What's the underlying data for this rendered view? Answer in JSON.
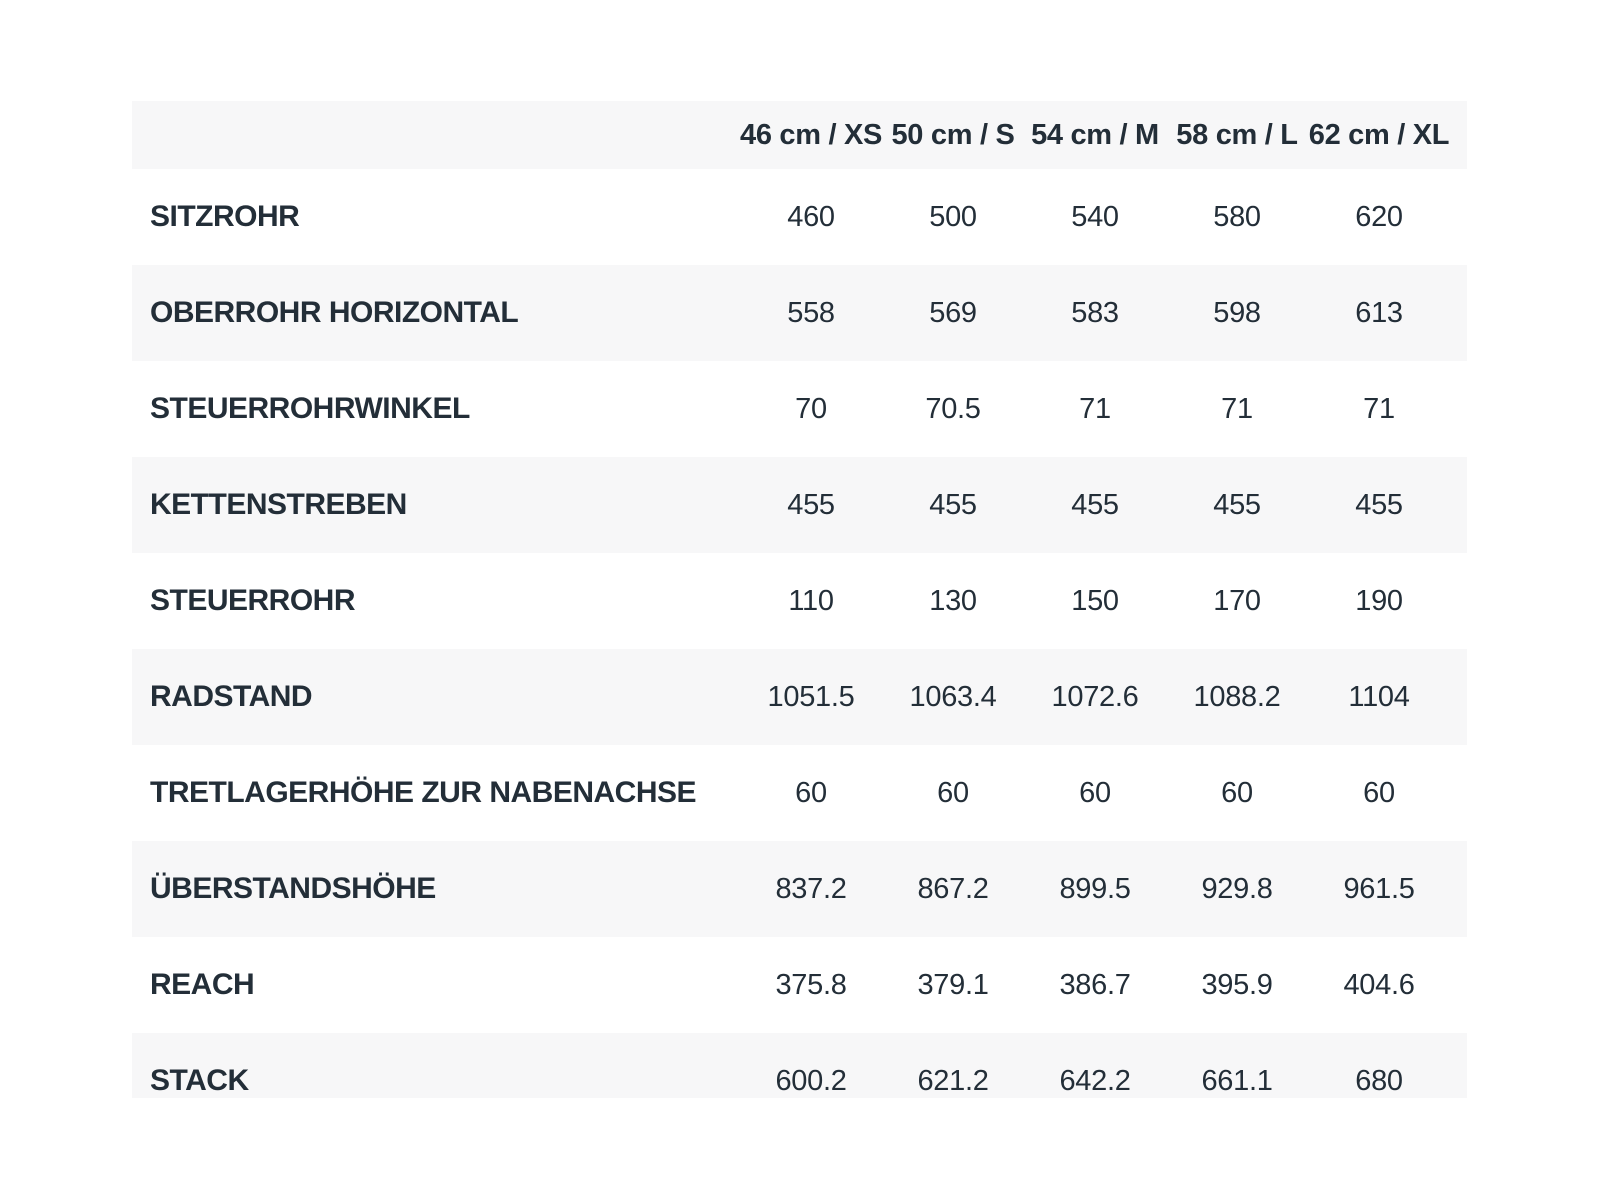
{
  "page": {
    "background": "#ffffff"
  },
  "table": {
    "columns": [
      "46 cm / XS",
      "50 cm / S",
      "54 cm / M",
      "58 cm / L",
      "62 cm / XL"
    ],
    "rows": [
      {
        "label": "SITZROHR",
        "values": [
          "460",
          "500",
          "540",
          "580",
          "620"
        ]
      },
      {
        "label": "OBERROHR HORIZONTAL",
        "values": [
          "558",
          "569",
          "583",
          "598",
          "613"
        ]
      },
      {
        "label": "STEUERROHRWINKEL",
        "values": [
          "70",
          "70.5",
          "71",
          "71",
          "71"
        ]
      },
      {
        "label": "KETTENSTREBEN",
        "values": [
          "455",
          "455",
          "455",
          "455",
          "455"
        ]
      },
      {
        "label": "STEUERROHR",
        "values": [
          "110",
          "130",
          "150",
          "170",
          "190"
        ]
      },
      {
        "label": "RADSTAND",
        "values": [
          "1051.5",
          "1063.4",
          "1072.6",
          "1088.2",
          "1104"
        ]
      },
      {
        "label": "TRETLAGERHÖHE ZUR NABENACHSE",
        "values": [
          "60",
          "60",
          "60",
          "60",
          "60"
        ]
      },
      {
        "label": "ÜBERSTANDSHÖHE",
        "values": [
          "837.2",
          "867.2",
          "899.5",
          "929.8",
          "961.5"
        ]
      },
      {
        "label": "REACH",
        "values": [
          "375.8",
          "379.1",
          "386.7",
          "395.9",
          "404.6"
        ]
      },
      {
        "label": "STACK",
        "values": [
          "600.2",
          "621.2",
          "642.2",
          "661.1",
          "680"
        ]
      }
    ],
    "style": {
      "text_color": "#232e38",
      "alt_row_bg": "#f7f7f8",
      "row_bg": "#ffffff"
    }
  },
  "chart_data": {
    "type": "table",
    "title": "",
    "categories": [
      "46 cm / XS",
      "50 cm / S",
      "54 cm / M",
      "58 cm / L",
      "62 cm / XL"
    ],
    "series": [
      {
        "name": "SITZROHR",
        "values": [
          460,
          500,
          540,
          580,
          620
        ]
      },
      {
        "name": "OBERROHR HORIZONTAL",
        "values": [
          558,
          569,
          583,
          598,
          613
        ]
      },
      {
        "name": "STEUERROHRWINKEL",
        "values": [
          70,
          70.5,
          71,
          71,
          71
        ]
      },
      {
        "name": "KETTENSTREBEN",
        "values": [
          455,
          455,
          455,
          455,
          455
        ]
      },
      {
        "name": "STEUERROHR",
        "values": [
          110,
          130,
          150,
          170,
          190
        ]
      },
      {
        "name": "RADSTAND",
        "values": [
          1051.5,
          1063.4,
          1072.6,
          1088.2,
          1104
        ]
      },
      {
        "name": "TRETLAGERHÖHE ZUR NABENACHSE",
        "values": [
          60,
          60,
          60,
          60,
          60
        ]
      },
      {
        "name": "ÜBERSTANDSHÖHE",
        "values": [
          837.2,
          867.2,
          899.5,
          929.8,
          961.5
        ]
      },
      {
        "name": "REACH",
        "values": [
          375.8,
          379.1,
          386.7,
          395.9,
          404.6
        ]
      },
      {
        "name": "STACK",
        "values": [
          600.2,
          621.2,
          642.2,
          661.1,
          680
        ]
      }
    ],
    "layout": {
      "header_bg": "#f7f7f8",
      "alt_row_bg": "#f7f7f8",
      "grid": false,
      "value_alignment": "center",
      "label_alignment": "left"
    }
  }
}
